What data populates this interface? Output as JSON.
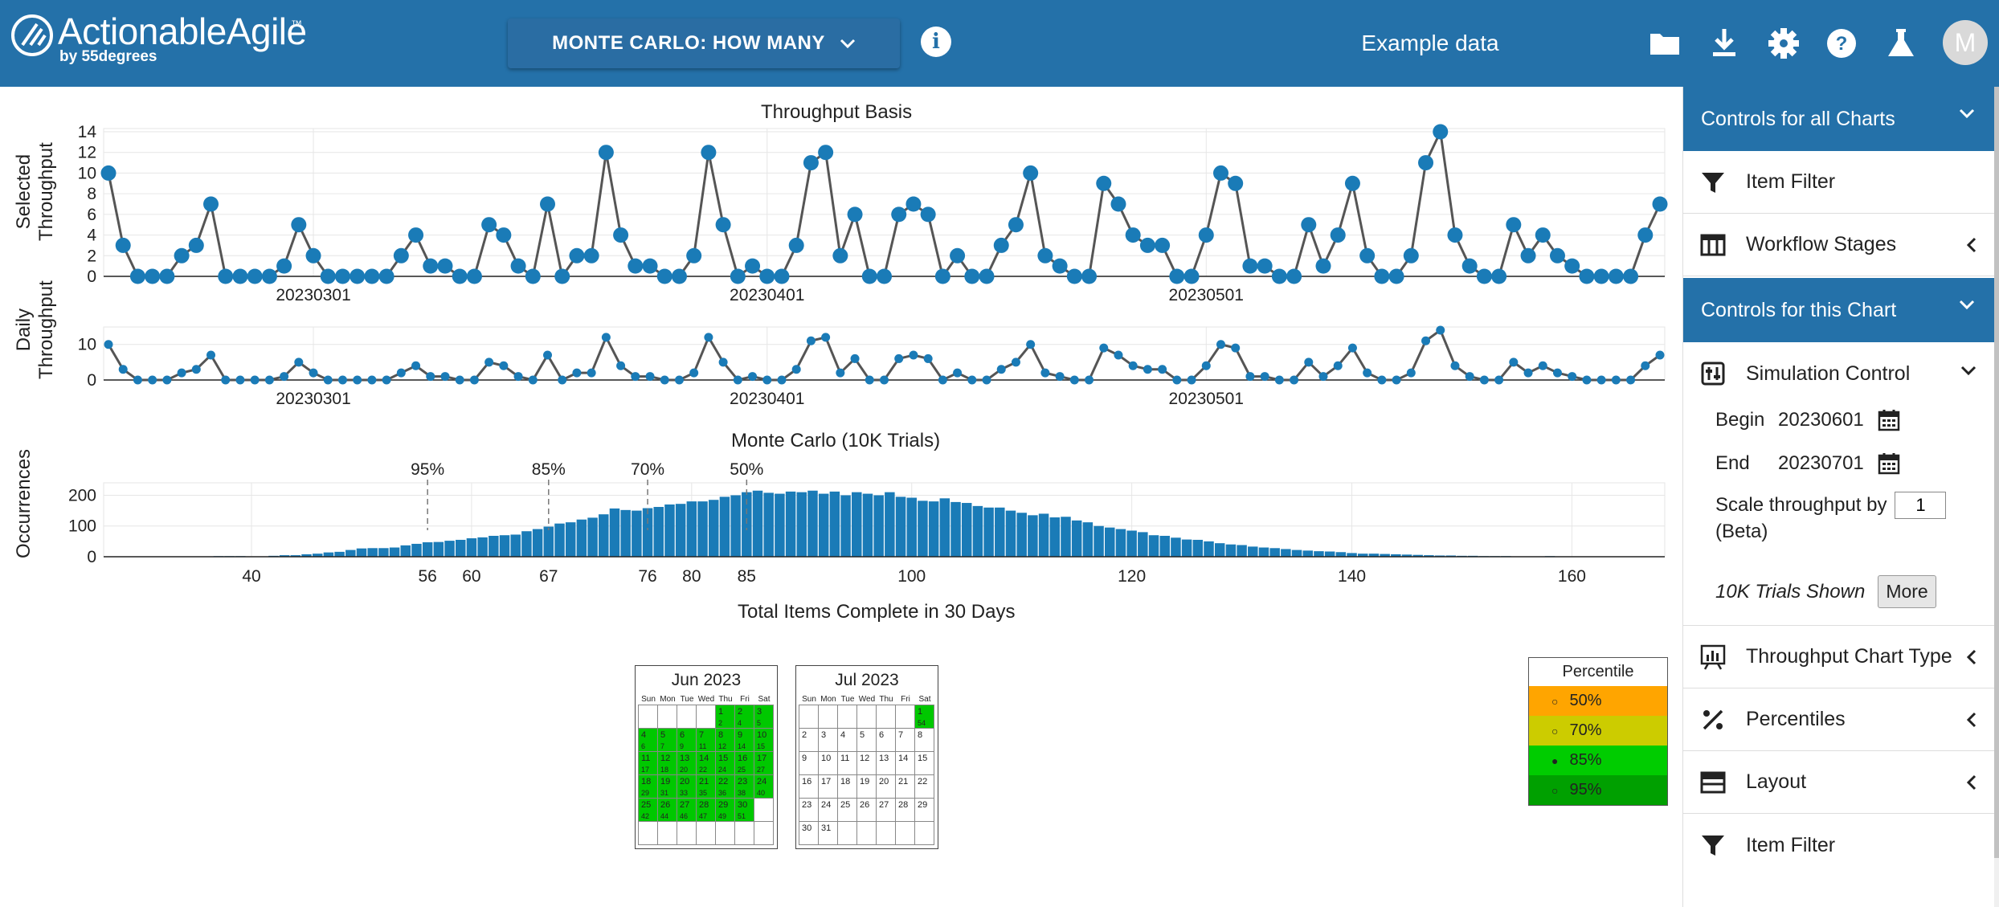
{
  "header": {
    "brand": "ActionableAgile",
    "brand_tm": "™",
    "brand_sub": "by 55degrees",
    "mode_label": "MONTE CARLO: HOW MANY",
    "info_label": "i",
    "dataset_label": "Example data",
    "avatar_initial": "M",
    "bar_color": "#2471a9"
  },
  "throughput_chart": {
    "title": "Throughput Basis",
    "ylabel_line1": "Selected",
    "ylabel_line2": "Throughput",
    "yticks": [
      "0",
      "2",
      "4",
      "6",
      "8",
      "10",
      "12",
      "14"
    ],
    "xticks": [
      "20230301",
      "20230401",
      "20230501"
    ],
    "color": "#1a7bb7"
  },
  "daily_chart": {
    "ylabel_line1": "Daily",
    "ylabel_line2": "Throughput",
    "yticks": [
      "0",
      "10"
    ],
    "xticks": [
      "20230301",
      "20230401",
      "20230501"
    ]
  },
  "monte_carlo": {
    "title": "Monte Carlo (10K Trials)",
    "ylabel": "Occurrences",
    "xlabel": "Total Items Complete in 30 Days",
    "yticks": [
      "0",
      "100",
      "200"
    ],
    "xticks": [
      "40",
      "56",
      "60",
      "67",
      "76",
      "80",
      "85",
      "100",
      "120",
      "140",
      "160"
    ],
    "percentile_marks": [
      {
        "label": "95%",
        "x": 56
      },
      {
        "label": "85%",
        "x": 67
      },
      {
        "label": "70%",
        "x": 76
      },
      {
        "label": "50%",
        "x": 85
      }
    ],
    "bar_color": "#1a7bb7"
  },
  "chart_data": [
    {
      "type": "line",
      "title": "Throughput Basis",
      "ylabel": "Selected Throughput",
      "ylim": [
        0,
        14
      ],
      "x_start": "20230215",
      "x_end": "20230531",
      "values": [
        10,
        3,
        0,
        0,
        0,
        2,
        3,
        7,
        0,
        0,
        0,
        0,
        1,
        5,
        2,
        0,
        0,
        0,
        0,
        0,
        2,
        4,
        1,
        1,
        0,
        0,
        5,
        4,
        1,
        0,
        7,
        0,
        2,
        2,
        12,
        4,
        1,
        1,
        0,
        0,
        2,
        12,
        5,
        0,
        1,
        0,
        0,
        3,
        11,
        12,
        2,
        6,
        0,
        0,
        6,
        7,
        6,
        0,
        2,
        0,
        0,
        3,
        5,
        10,
        2,
        1,
        0,
        0,
        9,
        7,
        4,
        3,
        3,
        0,
        0,
        4,
        10,
        9,
        1,
        1,
        0,
        0,
        5,
        1,
        4,
        9,
        2,
        0,
        0,
        2,
        11,
        14,
        4,
        1,
        0,
        0,
        5,
        2,
        4,
        2,
        1,
        0,
        0,
        0,
        0,
        4,
        7
      ]
    },
    {
      "type": "histogram",
      "title": "Monte Carlo (10K Trials)",
      "xlabel": "Total Items Complete in 30 Days",
      "ylabel": "Occurrences",
      "ylim": [
        0,
        230
      ],
      "x_start": 31,
      "values": [
        0,
        0,
        0,
        0,
        0,
        0,
        2,
        2,
        2,
        0,
        1,
        3,
        5,
        5,
        8,
        10,
        14,
        16,
        22,
        27,
        28,
        28,
        30,
        37,
        42,
        47,
        48,
        52,
        55,
        60,
        63,
        68,
        70,
        72,
        83,
        90,
        98,
        108,
        112,
        121,
        127,
        138,
        157,
        152,
        150,
        158,
        162,
        170,
        172,
        180,
        180,
        185,
        195,
        200,
        210,
        215,
        208,
        205,
        212,
        210,
        215,
        205,
        212,
        200,
        210,
        205,
        200,
        210,
        195,
        192,
        182,
        180,
        190,
        178,
        175,
        165,
        160,
        160,
        150,
        143,
        135,
        140,
        128,
        130,
        118,
        112,
        100,
        95,
        90,
        85,
        80,
        70,
        68,
        62,
        56,
        55,
        50,
        44,
        40,
        38,
        33,
        30,
        28,
        25,
        22,
        20,
        18,
        17,
        15,
        12,
        10,
        10,
        9,
        8,
        7,
        6,
        5,
        4,
        4,
        3,
        3,
        2,
        2,
        2,
        1,
        1,
        0,
        2,
        1,
        0,
        1,
        0,
        0,
        1,
        1,
        0,
        0,
        0,
        0,
        0,
        0,
        0,
        0,
        0,
        0,
        0,
        0
      ]
    }
  ],
  "calendars": [
    {
      "title": "Jun 2023",
      "dow": [
        "Sun",
        "Mon",
        "Tue",
        "Wed",
        "Thu",
        "Fri",
        "Sat"
      ],
      "lead_blanks": 4,
      "days": 30,
      "green_until": 30,
      "counts": [
        "2",
        "4",
        "5",
        "6",
        "7",
        "9",
        "11",
        "12",
        "14",
        "15",
        "17",
        "18",
        "20",
        "22",
        "24",
        "25",
        "27",
        "29",
        "31",
        "33",
        "35",
        "36",
        "38",
        "40",
        "42",
        "44",
        "46",
        "47",
        "49",
        "51"
      ],
      "rows": 6
    },
    {
      "title": "Jul 2023",
      "dow": [
        "Sun",
        "Mon",
        "Tue",
        "Wed",
        "Thu",
        "Fri",
        "Sat"
      ],
      "lead_blanks": 6,
      "days": 31,
      "green_until": 1,
      "counts": [
        "54"
      ],
      "rows": 6
    }
  ],
  "percentile_legend": {
    "title": "Percentile",
    "rows": [
      {
        "label": "50%",
        "color": "#ffa500",
        "marker": "○"
      },
      {
        "label": "70%",
        "color": "#cccc00",
        "marker": "○"
      },
      {
        "label": "85%",
        "color": "#00cc00",
        "marker": "●"
      },
      {
        "label": "95%",
        "color": "#00a000",
        "marker": "○"
      }
    ]
  },
  "panel": {
    "controls_all": "Controls for all Charts",
    "item_filter": "Item Filter",
    "workflow_stages": "Workflow Stages",
    "controls_chart": "Controls for this Chart",
    "simulation_control": "Simulation Control",
    "begin_label": "Begin",
    "begin_value": "20230601",
    "end_label": "End",
    "end_value": "20230701",
    "scale_label": "Scale throughput by",
    "scale_value": "1",
    "beta_label": "(Beta)",
    "trials_shown": "10K Trials Shown",
    "more_label": "More",
    "throughput_chart_type": "Throughput Chart Type",
    "percentiles": "Percentiles",
    "layout": "Layout",
    "item_filter_2": "Item Filter"
  }
}
